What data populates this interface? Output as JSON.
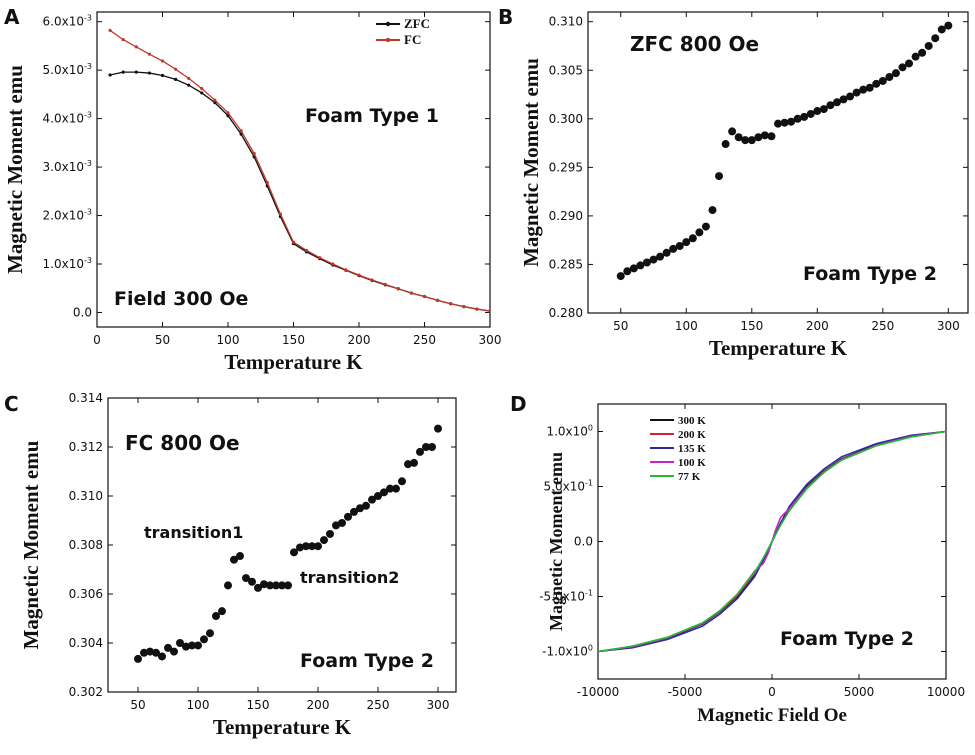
{
  "figure": {
    "panels": [
      "A",
      "B",
      "C",
      "D"
    ]
  },
  "chart_data": [
    {
      "id": "A",
      "type": "line",
      "label": "A",
      "xlabel": "Temperature K",
      "ylabel": "Magnetic Moment emu",
      "xlim": [
        0,
        300
      ],
      "ylim": [
        -0.0003,
        0.0062
      ],
      "xticks": [
        0,
        50,
        100,
        150,
        200,
        250,
        300
      ],
      "yticks": [
        {
          "value": 0.0,
          "label": "0.0"
        },
        {
          "value": 0.001,
          "label": "1.0x10",
          "exp": "-3"
        },
        {
          "value": 0.002,
          "label": "2.0x10",
          "exp": "-3"
        },
        {
          "value": 0.003,
          "label": "3.0x10",
          "exp": "-3"
        },
        {
          "value": 0.004,
          "label": "4.0x10",
          "exp": "-3"
        },
        {
          "value": 0.005,
          "label": "5.0x10",
          "exp": "-3"
        },
        {
          "value": 0.006,
          "label": "6.0x10",
          "exp": "-3"
        }
      ],
      "annotations": [
        "Foam Type 1",
        "Field 300 Oe"
      ],
      "legend": "top-right",
      "series": [
        {
          "name": "ZFC",
          "color": "#111111",
          "x": [
            10,
            20,
            30,
            40,
            50,
            60,
            70,
            80,
            90,
            100,
            110,
            120,
            130,
            140,
            150,
            160,
            170,
            180,
            190,
            200,
            210,
            220,
            230,
            240,
            250,
            260,
            270,
            280,
            290,
            300
          ],
          "y": [
            0.0049,
            0.00496,
            0.00496,
            0.00494,
            0.00489,
            0.00481,
            0.00469,
            0.00453,
            0.00433,
            0.00406,
            0.00368,
            0.00321,
            0.00261,
            0.00198,
            0.00142,
            0.00125,
            0.00111,
            0.00098,
            0.00087,
            0.00076,
            0.00066,
            0.00057,
            0.00049,
            0.0004,
            0.00033,
            0.00025,
            0.00018,
            0.00012,
            7e-05,
            3e-05
          ]
        },
        {
          "name": "FC",
          "color": "#c0392b",
          "x": [
            10,
            20,
            30,
            40,
            50,
            60,
            70,
            80,
            90,
            100,
            110,
            120,
            130,
            140,
            150,
            160,
            170,
            180,
            190,
            200,
            210,
            220,
            230,
            240,
            250,
            260,
            270,
            280,
            290,
            300
          ],
          "y": [
            0.00582,
            0.00563,
            0.00548,
            0.00533,
            0.00519,
            0.00502,
            0.00483,
            0.00462,
            0.00438,
            0.00412,
            0.00375,
            0.00328,
            0.00268,
            0.00203,
            0.00145,
            0.00128,
            0.00113,
            0.001,
            0.00088,
            0.00077,
            0.00067,
            0.00058,
            0.00049,
            0.0004,
            0.00033,
            0.00025,
            0.00018,
            0.00012,
            7e-05,
            3e-05
          ]
        }
      ]
    },
    {
      "id": "B",
      "type": "scatter",
      "label": "B",
      "xlabel": "Temperature K",
      "ylabel": "Magnetic Moment emu",
      "xlim": [
        25,
        315
      ],
      "ylim": [
        0.28,
        0.311
      ],
      "xticks": [
        50,
        100,
        150,
        200,
        250,
        300
      ],
      "yticks": [
        {
          "value": 0.28,
          "label": "0.280"
        },
        {
          "value": 0.285,
          "label": "0.285"
        },
        {
          "value": 0.29,
          "label": "0.290"
        },
        {
          "value": 0.295,
          "label": "0.295"
        },
        {
          "value": 0.3,
          "label": "0.300"
        },
        {
          "value": 0.305,
          "label": "0.305"
        },
        {
          "value": 0.31,
          "label": "0.310"
        }
      ],
      "annotations": [
        "ZFC 800 Oe",
        "Foam Type 2"
      ],
      "series": [
        {
          "color": "#111111",
          "x": [
            50,
            55,
            60,
            65,
            70,
            75,
            80,
            85,
            90,
            95,
            100,
            105,
            110,
            115,
            120,
            125,
            130,
            135,
            140,
            145,
            150,
            155,
            160,
            165,
            170,
            175,
            180,
            185,
            190,
            195,
            200,
            205,
            210,
            215,
            220,
            225,
            230,
            235,
            240,
            245,
            250,
            255,
            260,
            265,
            270,
            275,
            280,
            285,
            290,
            295,
            300
          ],
          "y": [
            0.2838,
            0.2843,
            0.2846,
            0.2849,
            0.2852,
            0.2855,
            0.2858,
            0.2862,
            0.2866,
            0.2869,
            0.2873,
            0.2877,
            0.2883,
            0.2889,
            0.2906,
            0.2941,
            0.2974,
            0.2987,
            0.2981,
            0.2978,
            0.2978,
            0.2981,
            0.2983,
            0.2982,
            0.2995,
            0.2996,
            0.2997,
            0.3,
            0.3002,
            0.3005,
            0.3008,
            0.301,
            0.3014,
            0.3017,
            0.302,
            0.3023,
            0.3027,
            0.303,
            0.3032,
            0.3036,
            0.3039,
            0.3043,
            0.3047,
            0.3053,
            0.3057,
            0.3064,
            0.3068,
            0.3075,
            0.3083,
            0.3092,
            0.3096
          ]
        }
      ]
    },
    {
      "id": "C",
      "type": "scatter",
      "label": "C",
      "xlabel": "Temperature K",
      "ylabel": "Magnetic Moment emu",
      "xlim": [
        25,
        315
      ],
      "ylim": [
        0.302,
        0.314
      ],
      "xticks": [
        50,
        100,
        150,
        200,
        250,
        300
      ],
      "yticks": [
        {
          "value": 0.302,
          "label": "0.302"
        },
        {
          "value": 0.304,
          "label": "0.304"
        },
        {
          "value": 0.306,
          "label": "0.306"
        },
        {
          "value": 0.308,
          "label": "0.308"
        },
        {
          "value": 0.31,
          "label": "0.310"
        },
        {
          "value": 0.312,
          "label": "0.312"
        },
        {
          "value": 0.314,
          "label": "0.314"
        }
      ],
      "annotations": [
        "FC 800 Oe",
        "transition1",
        "transition2",
        "Foam Type 2"
      ],
      "series": [
        {
          "color": "#111111",
          "x": [
            50,
            55,
            60,
            65,
            70,
            75,
            80,
            85,
            90,
            95,
            100,
            105,
            110,
            115,
            120,
            125,
            130,
            135,
            140,
            145,
            150,
            155,
            160,
            165,
            170,
            175,
            180,
            185,
            190,
            195,
            200,
            205,
            210,
            215,
            220,
            225,
            230,
            235,
            240,
            245,
            250,
            255,
            260,
            265,
            270,
            275,
            280,
            285,
            290,
            295,
            300
          ],
          "y": [
            0.30335,
            0.3036,
            0.30365,
            0.3036,
            0.30345,
            0.3038,
            0.30365,
            0.304,
            0.30385,
            0.3039,
            0.3039,
            0.30415,
            0.3044,
            0.3051,
            0.3053,
            0.30635,
            0.3074,
            0.30755,
            0.30665,
            0.3065,
            0.30625,
            0.3064,
            0.30635,
            0.30635,
            0.30635,
            0.30635,
            0.3077,
            0.3079,
            0.30795,
            0.30795,
            0.30795,
            0.3082,
            0.30845,
            0.3088,
            0.3089,
            0.30915,
            0.30935,
            0.3095,
            0.3096,
            0.30985,
            0.31,
            0.31015,
            0.3103,
            0.3103,
            0.3106,
            0.3113,
            0.31135,
            0.3118,
            0.312,
            0.312,
            0.31275
          ]
        }
      ]
    },
    {
      "id": "D",
      "type": "line",
      "label": "D",
      "xlabel": "Magnetic Field Oe",
      "ylabel": "Magnetic Moment emu",
      "xlim": [
        -10000,
        10000
      ],
      "ylim": [
        -1.25,
        1.25
      ],
      "xticks": [
        -10000,
        -5000,
        0,
        5000,
        10000
      ],
      "yticks": [
        {
          "value": -1.0,
          "label": "-1.0x10",
          "exp": "0"
        },
        {
          "value": -0.5,
          "label": "-5.0x10",
          "exp": "-1"
        },
        {
          "value": 0.0,
          "label": "0.0"
        },
        {
          "value": 0.5,
          "label": "5.0x10",
          "exp": "-1"
        },
        {
          "value": 1.0,
          "label": "1.0x10",
          "exp": "0"
        }
      ],
      "annotations": [
        "Foam Type 2"
      ],
      "legend": "top-left",
      "series": [
        {
          "name": "300 K",
          "color": "#111111",
          "x": [
            -10000,
            -8000,
            -6000,
            -4000,
            -3000,
            -2000,
            -1000,
            -500,
            0,
            500,
            1000,
            2000,
            3000,
            4000,
            6000,
            8000,
            10000
          ],
          "y": [
            -1.0,
            -0.96,
            -0.88,
            -0.75,
            -0.64,
            -0.5,
            -0.3,
            -0.16,
            0.0,
            0.16,
            0.3,
            0.5,
            0.64,
            0.75,
            0.88,
            0.96,
            1.0
          ]
        },
        {
          "name": "200 K",
          "color": "#d6213a",
          "x": [
            -10000,
            -8000,
            -6000,
            -4000,
            -3000,
            -2000,
            -1000,
            -500,
            0,
            500,
            1000,
            2000,
            3000,
            4000,
            6000,
            8000,
            10000
          ],
          "y": [
            -1.0,
            -0.955,
            -0.875,
            -0.745,
            -0.635,
            -0.49,
            -0.29,
            -0.17,
            0.0,
            0.17,
            0.29,
            0.49,
            0.635,
            0.745,
            0.875,
            0.955,
            1.0
          ]
        },
        {
          "name": "135 K",
          "color": "#2e2a9c",
          "x": [
            -10000,
            -8000,
            -6000,
            -4000,
            -3000,
            -2000,
            -1000,
            -500,
            0,
            500,
            1000,
            2000,
            3000,
            4000,
            6000,
            8000,
            10000
          ],
          "y": [
            -1.0,
            -0.965,
            -0.89,
            -0.77,
            -0.66,
            -0.52,
            -0.32,
            -0.17,
            0.0,
            0.17,
            0.32,
            0.52,
            0.66,
            0.77,
            0.89,
            0.965,
            1.0
          ]
        },
        {
          "name": "100 K",
          "color": "#c026c8",
          "x": [
            -10000,
            -8000,
            -6000,
            -4000,
            -3000,
            -2000,
            -1000,
            -500,
            -200,
            0,
            200,
            500,
            1000,
            2000,
            3000,
            4000,
            6000,
            8000,
            10000
          ],
          "y": [
            -1.0,
            -0.955,
            -0.875,
            -0.745,
            -0.63,
            -0.48,
            -0.27,
            -0.2,
            -0.1,
            0.0,
            0.1,
            0.22,
            0.3,
            0.49,
            0.63,
            0.745,
            0.875,
            0.955,
            1.0
          ]
        },
        {
          "name": "77 K",
          "color": "#22bb33",
          "x": [
            -10000,
            -8000,
            -6000,
            -4000,
            -3000,
            -2000,
            -1000,
            -500,
            0,
            500,
            1000,
            2000,
            3000,
            4000,
            6000,
            8000,
            10000
          ],
          "y": [
            -1.0,
            -0.95,
            -0.87,
            -0.74,
            -0.63,
            -0.48,
            -0.28,
            -0.15,
            0.0,
            0.15,
            0.28,
            0.48,
            0.63,
            0.74,
            0.87,
            0.95,
            1.0
          ]
        }
      ]
    }
  ]
}
